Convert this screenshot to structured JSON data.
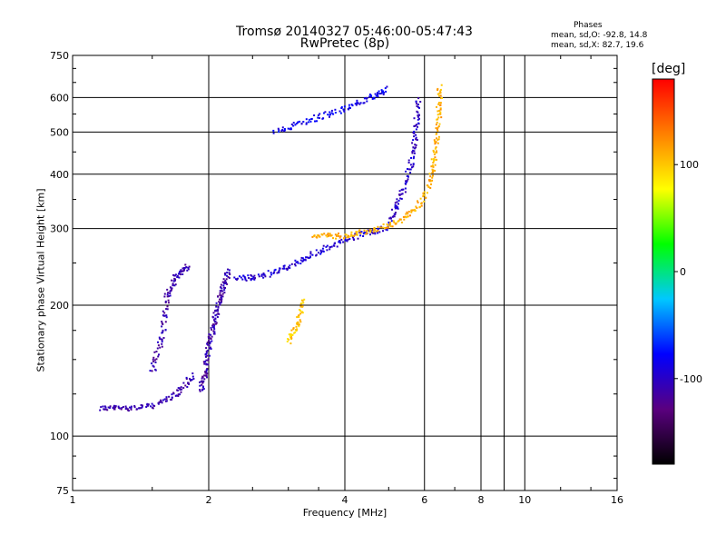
{
  "app": {
    "title_line1": "Tromsø 20140327 05:46:00-05:47:43",
    "title_line2": "RwPretec (8p)"
  },
  "phases_panel": {
    "title": "Phases",
    "line_o": "mean, sd,O: -92.8, 14.8",
    "line_x": "mean, sd,X:  82.7, 19.6"
  },
  "colorbar": {
    "unit_label": "[deg]",
    "range": [
      -180,
      180
    ],
    "ticks": [
      {
        "value": 100,
        "label": "100"
      },
      {
        "value": 0,
        "label": "0"
      },
      {
        "value": -100,
        "label": "-100"
      }
    ],
    "stops": [
      "#000000",
      "#5a007f",
      "#0000ff",
      "#00c8ff",
      "#00ff00",
      "#ffff00",
      "#ff8000",
      "#ff0000"
    ]
  },
  "chart_data": {
    "type": "scatter",
    "xlabel": "Frequency [MHz]",
    "ylabel": "Stationary phase Virtual Height [km]",
    "x_scale": "log",
    "y_scale": "log",
    "xlim": [
      1,
      16
    ],
    "ylim": [
      75,
      750
    ],
    "x_ticks": [
      {
        "value": 1,
        "label": "1"
      },
      {
        "value": 2,
        "label": "2"
      },
      {
        "value": 4,
        "label": "4"
      },
      {
        "value": 6,
        "label": "6"
      },
      {
        "value": 8,
        "label": "8"
      },
      {
        "value": 10,
        "label": "10"
      },
      {
        "value": 16,
        "label": "16"
      }
    ],
    "x_grid": [
      2,
      4,
      6,
      8,
      9,
      10
    ],
    "y_ticks": [
      {
        "value": 75,
        "label": "75"
      },
      {
        "value": 100,
        "label": "100"
      },
      {
        "value": 200,
        "label": "200"
      },
      {
        "value": 300,
        "label": "300"
      },
      {
        "value": 400,
        "label": "400"
      },
      {
        "value": 500,
        "label": "500"
      },
      {
        "value": 600,
        "label": "600"
      },
      {
        "value": 750,
        "label": "750"
      }
    ],
    "y_grid": [
      100,
      200,
      300,
      400,
      500,
      600
    ],
    "grid": true,
    "color_by": "phase [deg]",
    "traces": [
      {
        "x": [
          1.15,
          1.3,
          1.5,
          1.7,
          1.85
        ],
        "y": [
          116,
          116,
          117,
          125,
          138
        ],
        "phase": -110
      },
      {
        "x": [
          1.5,
          1.58,
          1.62,
          1.7,
          1.8
        ],
        "y": [
          140,
          170,
          210,
          235,
          245
        ],
        "phase": -110
      },
      {
        "x": [
          1.92,
          1.97,
          2.0,
          2.05,
          2.1,
          2.15,
          2.22
        ],
        "y": [
          127,
          140,
          160,
          180,
          200,
          220,
          240
        ],
        "phase": -110
      },
      {
        "x": [
          2.3,
          2.6,
          3.0,
          3.4,
          3.9,
          4.4,
          5.0
        ],
        "y": [
          230,
          232,
          245,
          262,
          278,
          293,
          300
        ],
        "phase": -95
      },
      {
        "x": [
          5.0,
          5.3,
          5.6,
          5.75,
          5.82
        ],
        "y": [
          310,
          350,
          420,
          500,
          595
        ],
        "phase": -100
      },
      {
        "x": [
          2.8,
          3.3,
          3.9,
          4.5,
          5.0
        ],
        "y": [
          500,
          530,
          560,
          595,
          630
        ],
        "phase": -85
      },
      {
        "x": [
          3.4,
          3.9,
          4.5,
          5.2,
          5.8,
          6.2,
          6.35,
          6.45,
          6.5
        ],
        "y": [
          290,
          288,
          296,
          310,
          335,
          390,
          450,
          540,
          640
        ],
        "phase": 110
      },
      {
        "x": [
          3.0,
          3.15,
          3.25
        ],
        "y": [
          165,
          180,
          205
        ],
        "phase": 100
      }
    ]
  }
}
